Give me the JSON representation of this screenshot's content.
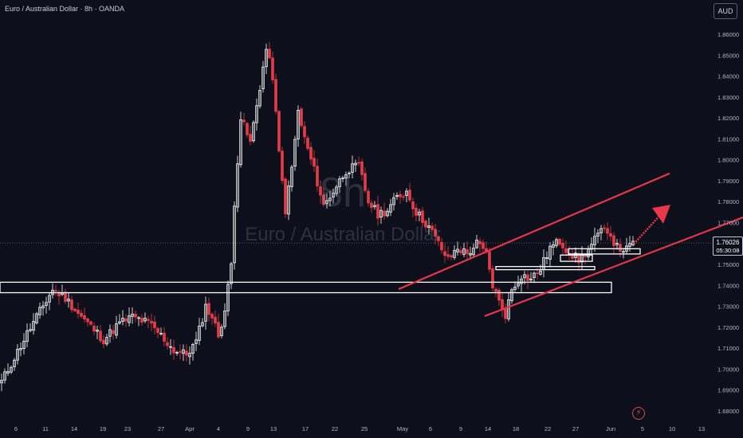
{
  "header": {
    "title": "Euro / Australian Dollar · 8h · OANDA",
    "currency_button": "AUD"
  },
  "watermark": {
    "interval": "8h",
    "symbol": "Euro / Australian Dollar"
  },
  "last_price": {
    "value": "1.76026",
    "countdown": "05:30:08"
  },
  "colors": {
    "background": "#0d0f1a",
    "bull": "#ffffff",
    "bear": "#e03c4a",
    "trendline": "#e8364a",
    "zone": "#ffffff",
    "text": "#b2b5be"
  },
  "icons": [
    "lightning-icon"
  ],
  "chart_data": {
    "type": "candlestick",
    "title": "Euro / Australian Dollar · 8h · OANDA",
    "ylim": [
      1.675,
      1.867
    ],
    "y_ticks": [
      "1.86000",
      "1.85000",
      "1.84000",
      "1.83000",
      "1.82000",
      "1.81000",
      "1.80000",
      "1.79000",
      "1.78000",
      "1.77000",
      "1.76000",
      "1.75000",
      "1.74000",
      "1.73000",
      "1.72000",
      "1.71000",
      "1.70000",
      "1.69000",
      "1.68000"
    ],
    "x_ticks": [
      "6",
      "11",
      "14",
      "19",
      "23",
      "27",
      "Apr",
      "4",
      "9",
      "13",
      "17",
      "22",
      "25",
      "May",
      "6",
      "9",
      "14",
      "18",
      "22",
      "27",
      "Jun",
      "5",
      "10",
      "13"
    ],
    "anchors": [
      [
        0,
        1.694
      ],
      [
        8,
        1.717
      ],
      [
        16,
        1.738
      ],
      [
        20,
        1.734
      ],
      [
        25,
        1.725
      ],
      [
        32,
        1.714
      ],
      [
        37,
        1.722
      ],
      [
        41,
        1.725
      ],
      [
        46,
        1.722
      ],
      [
        50,
        1.716
      ],
      [
        54,
        1.709
      ],
      [
        58,
        1.707
      ],
      [
        61,
        1.713
      ],
      [
        64,
        1.73
      ],
      [
        66,
        1.725
      ],
      [
        68,
        1.716
      ],
      [
        70,
        1.728
      ],
      [
        72,
        1.75
      ],
      [
        73,
        1.78
      ],
      [
        75,
        1.82
      ],
      [
        78,
        1.808
      ],
      [
        81,
        1.835
      ],
      [
        83,
        1.853
      ],
      [
        85,
        1.84
      ],
      [
        87,
        1.803
      ],
      [
        89,
        1.776
      ],
      [
        91,
        1.796
      ],
      [
        93,
        1.823
      ],
      [
        95,
        1.81
      ],
      [
        98,
        1.795
      ],
      [
        101,
        1.778
      ],
      [
        104,
        1.785
      ],
      [
        108,
        1.795
      ],
      [
        112,
        1.797
      ],
      [
        115,
        1.78
      ],
      [
        118,
        1.774
      ],
      [
        121,
        1.776
      ],
      [
        124,
        1.782
      ],
      [
        127,
        1.785
      ],
      [
        130,
        1.775
      ],
      [
        134,
        1.768
      ],
      [
        137,
        1.76
      ],
      [
        140,
        1.752
      ],
      [
        143,
        1.758
      ],
      [
        146,
        1.755
      ],
      [
        149,
        1.76
      ],
      [
        152,
        1.755
      ],
      [
        154,
        1.74
      ],
      [
        156,
        1.732
      ],
      [
        158,
        1.726
      ],
      [
        160,
        1.738
      ],
      [
        163,
        1.745
      ],
      [
        166,
        1.743
      ],
      [
        169,
        1.748
      ],
      [
        172,
        1.758
      ],
      [
        175,
        1.761
      ],
      [
        178,
        1.756
      ],
      [
        181,
        1.752
      ],
      [
        184,
        1.757
      ],
      [
        187,
        1.764
      ],
      [
        190,
        1.767
      ],
      [
        193,
        1.758
      ],
      [
        196,
        1.757
      ],
      [
        198,
        1.76
      ]
    ],
    "channel": {
      "lower": [
        [
          1.7253,
          1.7595
        ],
        "from May 14 low to beyond Jun 13"
      ],
      "upper": [
        [
          1.7382,
          1.7935
        ],
        "parallel upper trendline"
      ]
    },
    "zones": [
      {
        "label": "support-zone-1",
        "from": 1.7365,
        "to": 1.7415
      },
      {
        "label": "support-zone-2",
        "from": 1.7475,
        "to": 1.749
      },
      {
        "label": "support-zone-3",
        "from": 1.7515,
        "to": 1.7545
      },
      {
        "label": "support-zone-4",
        "from": 1.755,
        "to": 1.7575
      }
    ],
    "projection": "up-arrow toward 1.778"
  }
}
